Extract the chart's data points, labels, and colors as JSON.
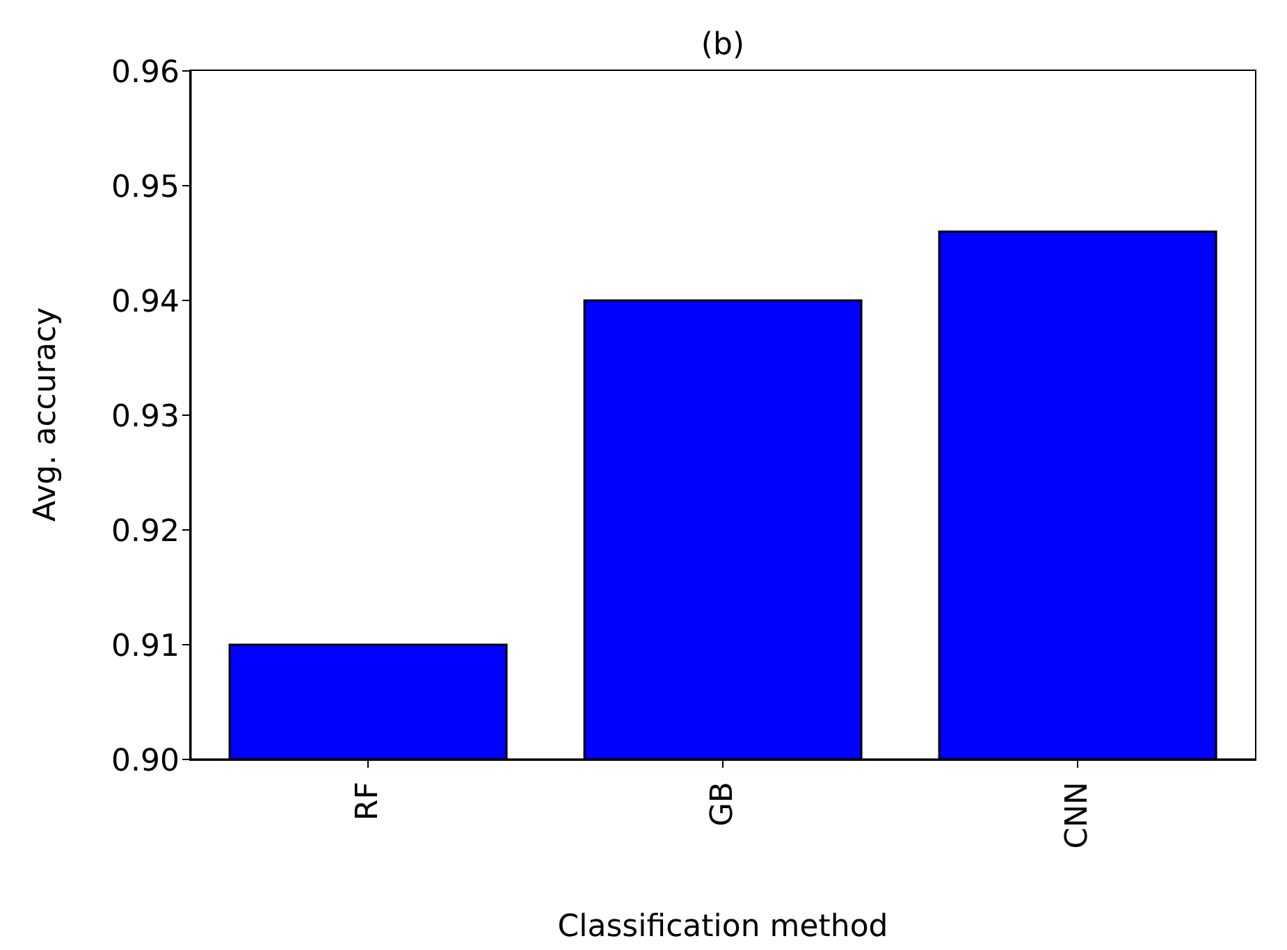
{
  "chart_data": {
    "type": "bar",
    "title": "(b)",
    "xlabel": "Classification method",
    "ylabel": "Avg. accuracy",
    "categories": [
      "RF",
      "GB",
      "CNN"
    ],
    "values": [
      0.91,
      0.94,
      0.946
    ],
    "color": "#0000ff",
    "ylim": [
      0.9,
      0.96
    ],
    "yticks": [
      {
        "value": 0.9,
        "label": "0.90"
      },
      {
        "value": 0.91,
        "label": "0.91"
      },
      {
        "value": 0.92,
        "label": "0.92"
      },
      {
        "value": 0.93,
        "label": "0.93"
      },
      {
        "value": 0.94,
        "label": "0.94"
      },
      {
        "value": 0.95,
        "label": "0.95"
      },
      {
        "value": 0.96,
        "label": "0.96"
      }
    ],
    "grid": false,
    "legend": false
  }
}
